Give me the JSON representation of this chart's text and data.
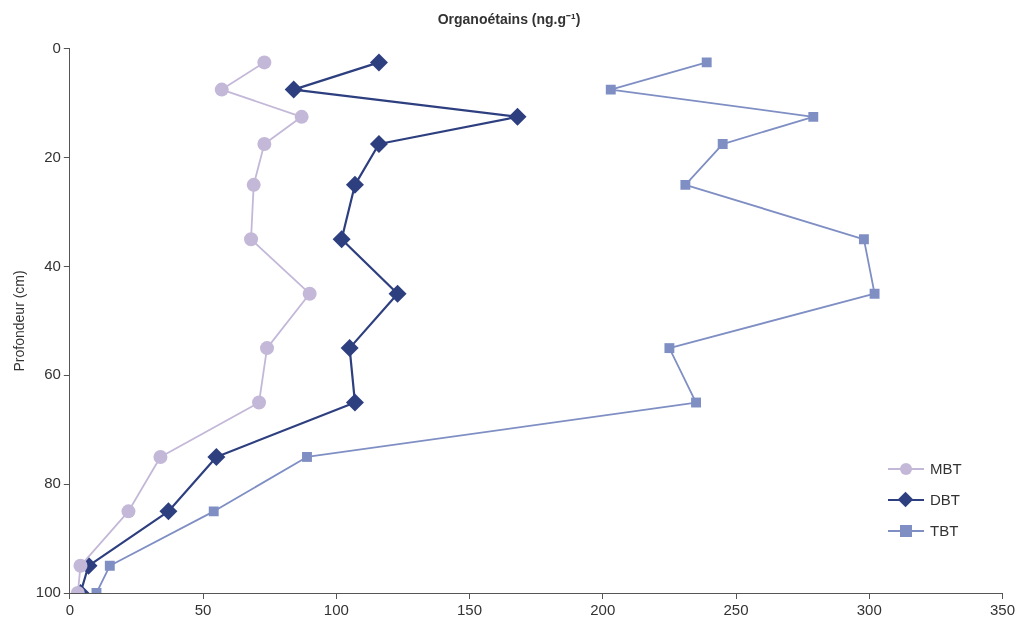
{
  "chart_data": {
    "type": "line",
    "xlabel": "Organoétains (ng.g⁻¹)",
    "ylabel": "Profondeur (cm)",
    "xlim": [
      0,
      350
    ],
    "xticks": [
      0,
      50,
      100,
      150,
      200,
      250,
      300,
      350
    ],
    "ylim": [
      100,
      0
    ],
    "yticks": [
      0,
      20,
      40,
      60,
      80,
      100
    ],
    "grid": false,
    "legend": "right",
    "line_style": "solid",
    "series": [
      {
        "name": "MBT",
        "color": "#c4b8d8",
        "marker": "circle",
        "x": [
          73,
          57,
          87,
          73,
          69,
          68,
          90,
          74,
          71,
          34,
          22,
          4,
          3
        ],
        "values": [
          2.5,
          7.5,
          12.5,
          17.5,
          25,
          35,
          45,
          55,
          65,
          75,
          85,
          95,
          100
        ]
      },
      {
        "name": "DBT",
        "color": "#2e3f80",
        "marker": "diamond",
        "x": [
          116,
          84,
          168,
          116,
          107,
          102,
          123,
          105,
          107,
          55,
          37,
          7,
          4
        ],
        "values": [
          2.5,
          7.5,
          12.5,
          17.5,
          25,
          35,
          45,
          55,
          65,
          75,
          85,
          95,
          100
        ]
      },
      {
        "name": "TBT",
        "color": "#7f8fc4",
        "marker": "square",
        "x": [
          239,
          203,
          279,
          245,
          231,
          298,
          302,
          225,
          235,
          89,
          54,
          15,
          10
        ],
        "values": [
          2.5,
          7.5,
          12.5,
          17.5,
          25,
          35,
          45,
          55,
          65,
          75,
          85,
          95,
          100
        ]
      }
    ]
  }
}
